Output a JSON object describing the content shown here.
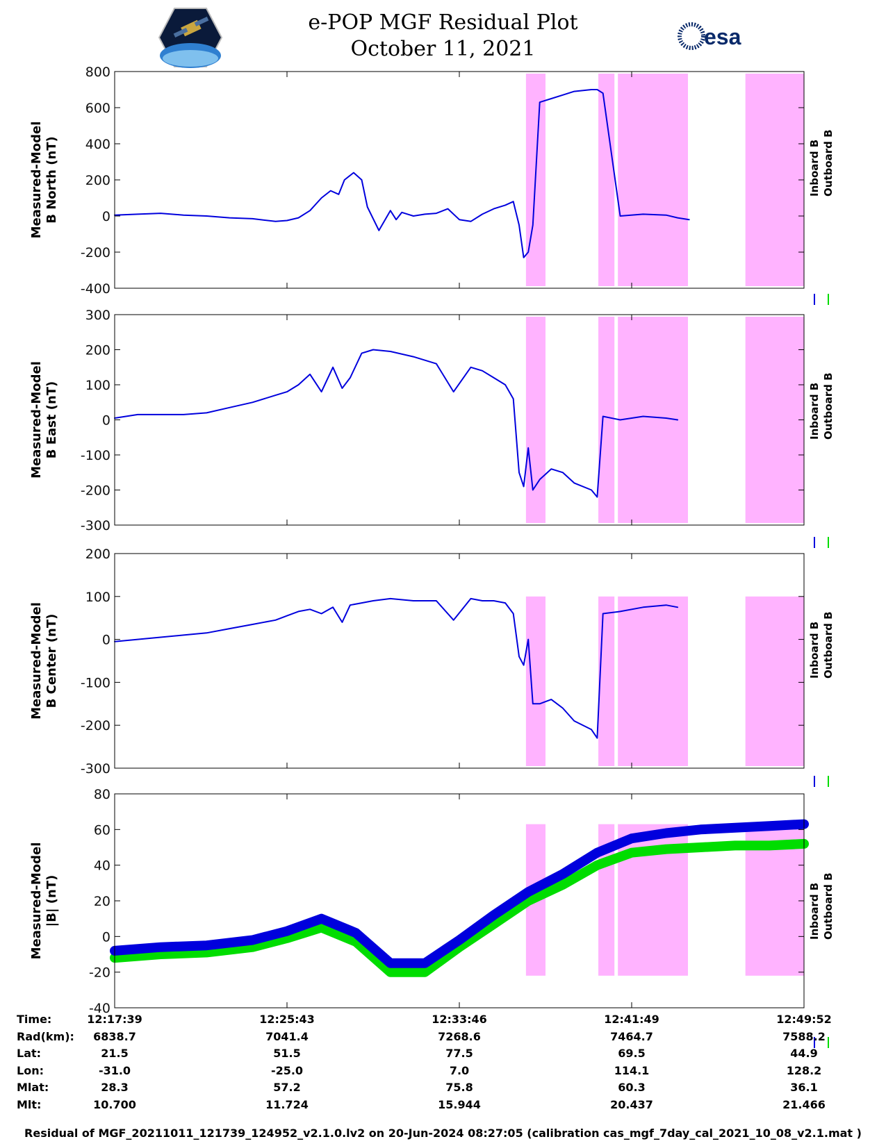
{
  "title": "e-POP MGF Residual Plot",
  "subtitle": "October 11, 2021",
  "logos": {
    "left": "cassiope-satellite-logo",
    "right_text": "esa"
  },
  "colors": {
    "inboard": "#0000dd",
    "outboard": "#00dd00",
    "highlight": "#ffb3ff"
  },
  "chart_data": [
    {
      "type": "line",
      "ylabel_line1": "Measured-Model",
      "ylabel_line2": "B North (nT)",
      "ylim": [
        -400,
        800
      ],
      "yticks": [
        800,
        600,
        400,
        200,
        0,
        -200,
        -400
      ],
      "legend": [
        "Inboard B",
        "Outboard B"
      ],
      "series": [
        {
          "name": "Inboard B",
          "x": [
            0,
            2,
            4,
            6,
            8,
            10,
            12,
            14,
            15,
            16,
            17,
            18,
            18.8,
            19.5,
            20,
            20.8,
            21.5,
            22,
            23,
            24,
            24.5,
            25,
            25.5,
            26,
            27,
            28,
            29,
            30,
            31,
            32,
            33,
            34,
            34.7,
            35.2,
            35.6,
            36,
            36.4,
            37,
            38,
            39,
            40,
            41.5,
            42,
            42.5,
            44,
            46,
            48,
            49,
            50,
            51,
            52,
            53,
            54,
            55,
            56,
            57,
            58,
            59,
            60
          ],
          "y": [
            5,
            10,
            15,
            5,
            0,
            -10,
            -15,
            -30,
            -25,
            -10,
            30,
            100,
            140,
            120,
            200,
            240,
            200,
            50,
            -80,
            30,
            -20,
            20,
            10,
            0,
            10,
            15,
            40,
            -20,
            -30,
            10,
            40,
            60,
            80,
            -50,
            -230,
            -200,
            -50,
            630,
            650,
            670,
            690,
            700,
            700,
            680,
            0,
            10,
            5,
            -10,
            -20,
            null,
            null,
            null,
            null,
            null,
            null,
            null,
            null,
            null,
            null
          ]
        }
      ]
    },
    {
      "type": "line",
      "ylabel_line1": "Measured-Model",
      "ylabel_line2": "B East (nT)",
      "ylim": [
        -300,
        300
      ],
      "yticks": [
        300,
        200,
        100,
        0,
        -100,
        -200,
        -300
      ],
      "legend": [
        "Inboard B",
        "Outboard B"
      ],
      "series": [
        {
          "name": "Inboard B",
          "x": [
            0,
            2,
            4,
            6,
            8,
            10,
            12,
            14,
            15,
            16,
            17,
            18,
            19,
            19.8,
            20.5,
            21.5,
            22.5,
            24,
            26,
            28,
            29.5,
            31,
            32,
            33,
            34,
            34.7,
            35.2,
            35.6,
            36,
            36.4,
            37,
            38,
            39,
            40,
            41.5,
            42,
            42.5,
            44,
            46,
            48,
            49
          ],
          "y": [
            5,
            15,
            15,
            15,
            20,
            35,
            50,
            70,
            80,
            100,
            130,
            80,
            150,
            90,
            120,
            190,
            200,
            195,
            180,
            160,
            80,
            150,
            140,
            120,
            100,
            60,
            -150,
            -190,
            -80,
            -200,
            -170,
            -140,
            -150,
            -180,
            -200,
            -220,
            10,
            0,
            10,
            5,
            0
          ]
        }
      ]
    },
    {
      "type": "line",
      "ylabel_line1": "Measured-Model",
      "ylabel_line2": "B Center (nT)",
      "ylim": [
        -300,
        200
      ],
      "yticks": [
        200,
        100,
        0,
        -100,
        -200,
        -300
      ],
      "legend": [
        "Inboard B",
        "Outboard B"
      ],
      "series": [
        {
          "name": "Inboard B",
          "x": [
            0,
            2,
            4,
            6,
            8,
            10,
            12,
            14,
            15,
            16,
            17,
            18,
            19,
            19.8,
            20.5,
            21.5,
            22.5,
            24,
            26,
            28,
            29.5,
            31,
            32,
            33,
            34,
            34.7,
            35.2,
            35.6,
            36,
            36.4,
            37,
            38,
            39,
            40,
            41.5,
            42,
            42.5,
            44,
            46,
            48,
            49
          ],
          "y": [
            -5,
            0,
            5,
            10,
            15,
            25,
            35,
            45,
            55,
            65,
            70,
            60,
            75,
            40,
            80,
            85,
            90,
            95,
            90,
            90,
            45,
            95,
            90,
            90,
            85,
            60,
            -40,
            -60,
            0,
            -150,
            -150,
            -140,
            -160,
            -190,
            -210,
            -230,
            60,
            65,
            75,
            80,
            75
          ]
        }
      ]
    },
    {
      "type": "line",
      "ylabel_line1": "Measured-Model",
      "ylabel_line2": "|B| (nT)",
      "ylim": [
        -40,
        80
      ],
      "yticks": [
        80,
        60,
        40,
        20,
        0,
        -20,
        -40
      ],
      "legend": [
        "Inboard B",
        "Outboard B"
      ],
      "series": [
        {
          "name": "Inboard B",
          "x": [
            0,
            4,
            8,
            12,
            15,
            18,
            21,
            24,
            27,
            30,
            33,
            36,
            39,
            42,
            45,
            48,
            51,
            54,
            57,
            60
          ],
          "y": [
            -8,
            -6,
            -5,
            -2,
            3,
            10,
            2,
            -15,
            -15,
            -2,
            12,
            25,
            35,
            47,
            55,
            58,
            60,
            61,
            62,
            63
          ]
        },
        {
          "name": "Outboard B",
          "x": [
            0,
            4,
            8,
            12,
            15,
            18,
            21,
            24,
            27,
            30,
            33,
            36,
            39,
            42,
            45,
            48,
            51,
            54,
            57,
            60
          ],
          "y": [
            -12,
            -10,
            -9,
            -6,
            -1,
            5,
            -3,
            -20,
            -20,
            -6,
            7,
            20,
            29,
            40,
            47,
            49,
            50,
            51,
            51,
            52
          ]
        }
      ]
    }
  ],
  "highlight_bands": [
    {
      "from": 35.8,
      "to": 37.5
    },
    {
      "from": 42.1,
      "to": 43.5
    },
    {
      "from": 43.8,
      "to": 49.9
    },
    {
      "from": 54.9,
      "to": 60
    }
  ],
  "x_range": [
    0,
    60
  ],
  "footer": {
    "labels": [
      "Time:",
      "Rad(km):",
      "Lat:",
      "Lon:",
      "Mlat:",
      "Mlt:"
    ],
    "columns": [
      {
        "x": 0,
        "values": [
          "12:17:39",
          "6838.7",
          "21.5",
          "-31.0",
          "28.3",
          "10.700"
        ]
      },
      {
        "x": 15,
        "values": [
          "12:25:43",
          "7041.4",
          "51.5",
          "-25.0",
          "57.2",
          "11.724"
        ]
      },
      {
        "x": 30,
        "values": [
          "12:33:46",
          "7268.6",
          "77.5",
          "7.0",
          "75.8",
          "15.944"
        ]
      },
      {
        "x": 45,
        "values": [
          "12:41:49",
          "7464.7",
          "69.5",
          "114.1",
          "60.3",
          "20.437"
        ]
      },
      {
        "x": 60,
        "values": [
          "12:49:52",
          "7588.2",
          "44.9",
          "128.2",
          "36.1",
          "21.466"
        ]
      }
    ]
  },
  "caption": "Residual of MGF_20211011_121739_124952_v2.1.0.lv2 on 20-Jun-2024 08:27:05 (calibration cas_mgf_7day_cal_2021_10_08_v2.1.mat )"
}
